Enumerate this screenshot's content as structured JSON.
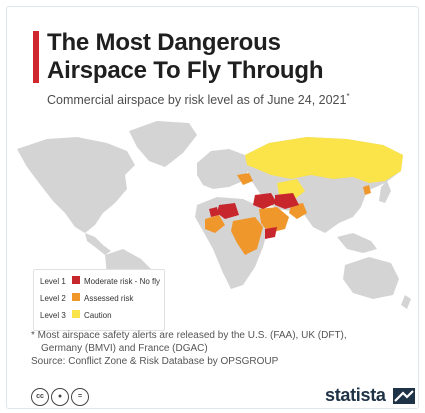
{
  "title_line1": "The Most Dangerous",
  "title_line2": "Airspace To Fly Through",
  "subtitle": "Commercial airspace by risk level as of June 24, 2021",
  "subtitle_mark": "*",
  "legend": [
    {
      "level": "Level 1",
      "label": "Moderate risk - No fly",
      "color": "#c8262d"
    },
    {
      "level": "Level 2",
      "label": "Assessed risk",
      "color": "#f0972c"
    },
    {
      "level": "Level 3",
      "label": "Caution",
      "color": "#fbe34a"
    }
  ],
  "footnote_line1": "* Most airspace safety alerts are released by the U.S. (FAA), UK (DFT),",
  "footnote_line2": "Germany (BMVI) and France (DGAC)",
  "source": "Source: Conflict Zone & Risk Database by OPSGROUP",
  "brand": "statista",
  "icons": [
    "cc-icon",
    "by-icon",
    "nd-icon"
  ],
  "colors": {
    "land": "#d4d4d4",
    "title_accent": "#d0262d",
    "level1": "#c8262d",
    "level2": "#f0972c",
    "level3": "#fbe34a"
  }
}
